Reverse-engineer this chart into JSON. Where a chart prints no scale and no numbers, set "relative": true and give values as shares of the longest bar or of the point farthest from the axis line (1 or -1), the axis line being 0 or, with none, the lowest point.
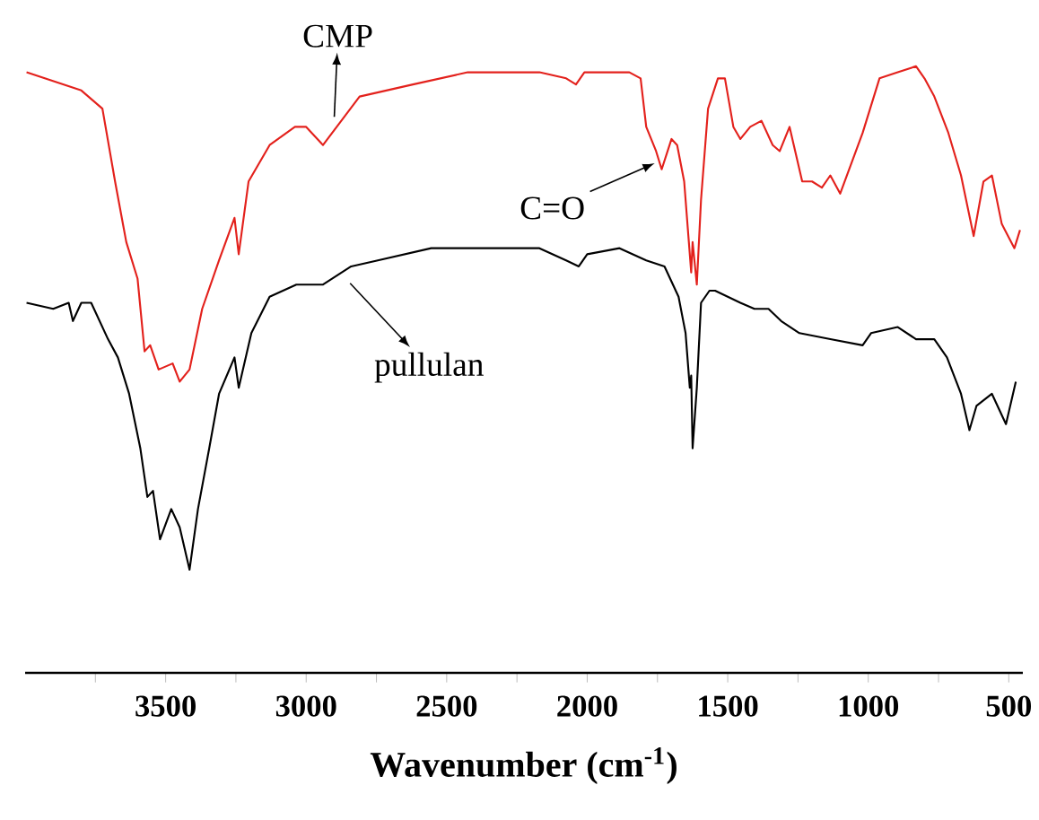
{
  "chart_data": {
    "type": "line",
    "relative": true,
    "xlabel": "Wavenumber (cm$^{-1}$)",
    "xlim": [
      4000,
      450
    ],
    "xticks": [
      {
        "value": 3750,
        "label": null
      },
      3500,
      {
        "value": 3250,
        "label": null
      },
      3000,
      {
        "value": 2750,
        "label": null
      },
      2500,
      {
        "value": 2250,
        "label": null
      },
      2000,
      {
        "value": 1750,
        "label": null
      },
      1500,
      {
        "value": 1250,
        "label": null
      },
      1000,
      {
        "value": 750,
        "label": null
      },
      500
    ],
    "annotations": [
      {
        "text": "CMP",
        "x": 2900,
        "y": 0.89
      },
      {
        "text": "C=O",
        "x": 1760,
        "y": 0.84
      },
      {
        "text": "pullulan",
        "x": 2850,
        "y": 0.66
      }
    ],
    "series": [
      {
        "color": "#e3211c",
        "x": [
          3995,
          3930,
          3800,
          3725,
          3680,
          3640,
          3600,
          3575,
          3555,
          3525,
          3475,
          3450,
          3415,
          3370,
          3310,
          3255,
          3240,
          3205,
          3130,
          3040,
          3000,
          2940,
          2875,
          2810,
          2620,
          2425,
          2300,
          2170,
          2075,
          2040,
          2010,
          1980,
          1850,
          1810,
          1790,
          1755,
          1735,
          1700,
          1680,
          1655,
          1640,
          1630,
          1625,
          1610,
          1595,
          1570,
          1535,
          1510,
          1480,
          1455,
          1420,
          1380,
          1340,
          1315,
          1280,
          1265,
          1235,
          1200,
          1165,
          1135,
          1100,
          1020,
          960,
          895,
          830,
          800,
          765,
          715,
          670,
          625,
          590,
          560,
          525,
          480,
          460
        ],
        "values": [
          0.99,
          0.98,
          0.96,
          0.93,
          0.81,
          0.71,
          0.65,
          0.53,
          0.54,
          0.5,
          0.51,
          0.48,
          0.5,
          0.6,
          0.68,
          0.75,
          0.69,
          0.81,
          0.87,
          0.9,
          0.9,
          0.87,
          0.91,
          0.95,
          0.97,
          0.99,
          0.99,
          0.99,
          0.98,
          0.97,
          0.99,
          0.99,
          0.99,
          0.98,
          0.9,
          0.86,
          0.83,
          0.88,
          0.87,
          0.81,
          0.72,
          0.66,
          0.71,
          0.64,
          0.78,
          0.93,
          0.98,
          0.98,
          0.9,
          0.88,
          0.9,
          0.91,
          0.87,
          0.86,
          0.9,
          0.87,
          0.81,
          0.81,
          0.8,
          0.82,
          0.79,
          0.89,
          0.98,
          0.99,
          1.0,
          0.98,
          0.95,
          0.89,
          0.82,
          0.72,
          0.81,
          0.82,
          0.74,
          0.7,
          0.73
        ]
      },
      {
        "color": "#000000",
        "x": [
          3995,
          3900,
          3845,
          3830,
          3800,
          3765,
          3735,
          3705,
          3670,
          3630,
          3590,
          3565,
          3545,
          3520,
          3480,
          3450,
          3415,
          3385,
          3345,
          3310,
          3255,
          3240,
          3195,
          3130,
          3035,
          2970,
          2940,
          2840,
          2745,
          2555,
          2425,
          2170,
          2075,
          2030,
          2000,
          1885,
          1790,
          1725,
          1675,
          1650,
          1635,
          1630,
          1625,
          1610,
          1595,
          1565,
          1545,
          1500,
          1455,
          1405,
          1355,
          1310,
          1245,
          1135,
          1020,
          990,
          895,
          830,
          765,
          720,
          670,
          640,
          615,
          560,
          510,
          475
        ],
        "values": [
          0.61,
          0.6,
          0.61,
          0.58,
          0.61,
          0.61,
          0.58,
          0.55,
          0.52,
          0.46,
          0.37,
          0.29,
          0.3,
          0.22,
          0.27,
          0.24,
          0.17,
          0.27,
          0.37,
          0.46,
          0.52,
          0.47,
          0.56,
          0.62,
          0.64,
          0.64,
          0.64,
          0.67,
          0.68,
          0.7,
          0.7,
          0.7,
          0.68,
          0.67,
          0.69,
          0.7,
          0.68,
          0.67,
          0.62,
          0.56,
          0.47,
          0.49,
          0.37,
          0.47,
          0.61,
          0.63,
          0.63,
          0.62,
          0.61,
          0.6,
          0.6,
          0.58,
          0.56,
          0.55,
          0.54,
          0.56,
          0.57,
          0.55,
          0.55,
          0.52,
          0.46,
          0.4,
          0.44,
          0.46,
          0.41,
          0.48
        ]
      }
    ]
  }
}
